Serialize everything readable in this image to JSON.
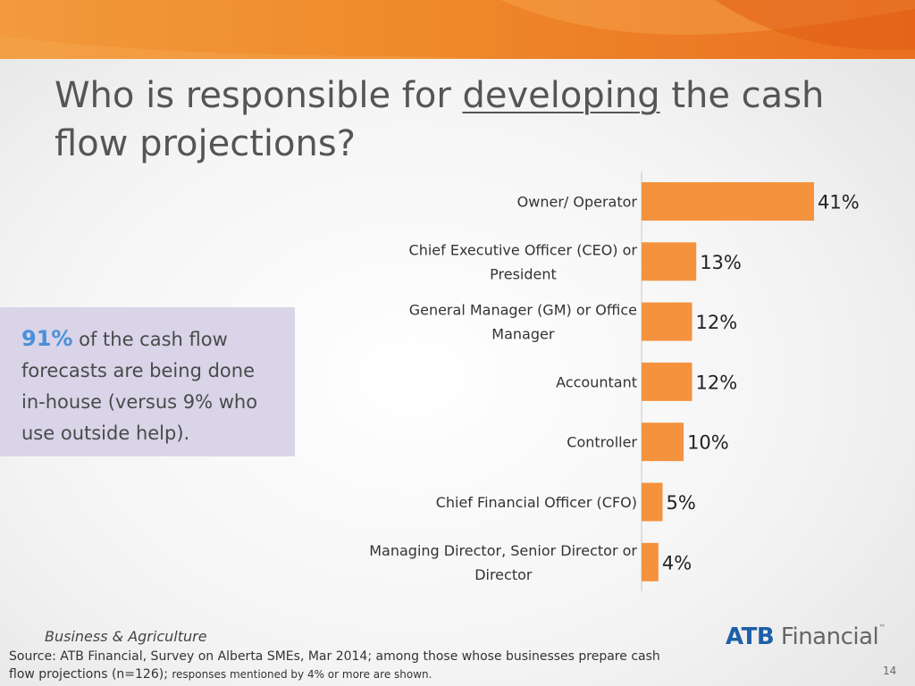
{
  "slide": {
    "title_pre": "Who is responsible for ",
    "title_underlined": "developing",
    "title_post": " the cash flow projections?",
    "callout_pct": "91%",
    "callout_text": " of the cash flow forecasts are being done in-house (versus 9% who use outside help).",
    "business_label": "Business & Agriculture",
    "source_main": "Source:  ATB Financial, Survey on Alberta SMEs, Mar 2014; among those whose businesses prepare cash flow projections (n=126); ",
    "source_small": "responses mentioned by 4% or more are shown.",
    "logo_atb": "ATB",
    "logo_name": " Financial",
    "logo_tm": "™",
    "page_number": "14"
  },
  "colors": {
    "bar": "#f5923e",
    "banner": "#ef8a2c",
    "callout_bg": "#d9d4e8",
    "highlight": "#4a90d9"
  },
  "chart_data": {
    "type": "bar",
    "orientation": "horizontal",
    "categories": [
      [
        "Owner/ Operator"
      ],
      [
        "Chief Executive Officer (CEO) or",
        "President"
      ],
      [
        "General Manager (GM) or Office",
        "Manager"
      ],
      [
        "Accountant"
      ],
      [
        "Controller"
      ],
      [
        "Chief Financial Officer (CFO)"
      ],
      [
        "Managing Director, Senior Director or",
        "Director"
      ]
    ],
    "values": [
      41,
      13,
      12,
      12,
      10,
      5,
      4
    ],
    "labels": [
      "41%",
      "13%",
      "12%",
      "12%",
      "10%",
      "5%",
      "4%"
    ],
    "xlim": [
      0,
      45
    ],
    "grid": false,
    "legend": "none"
  }
}
